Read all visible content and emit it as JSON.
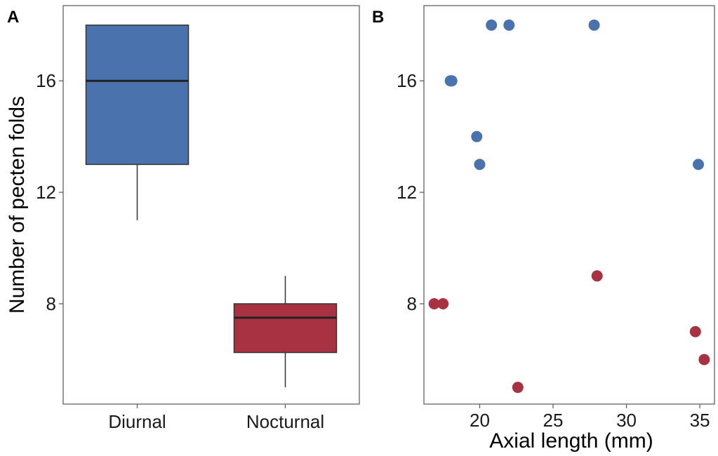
{
  "chart_data": [
    {
      "type": "box",
      "panel_label": "A",
      "ylabel": "Number of pecten folds",
      "xlabel": "",
      "ylim": [
        4.4,
        18.7
      ],
      "yticks": [
        8,
        12,
        16
      ],
      "categories": [
        "Diurnal",
        "Nocturnal"
      ],
      "boxes": [
        {
          "name": "Diurnal",
          "whisker_low": 11,
          "q1": 13,
          "median": 16,
          "q3": 18,
          "whisker_high": 18,
          "color": "#4a72ad"
        },
        {
          "name": "Nocturnal",
          "whisker_low": 5,
          "q1": 6.25,
          "median": 7.5,
          "q3": 8,
          "whisker_high": 9,
          "color": "#a93242"
        }
      ]
    },
    {
      "type": "scatter",
      "panel_label": "B",
      "xlabel": "Axial length (mm)",
      "ylabel": "",
      "xlim": [
        16.2,
        36.0
      ],
      "ylim": [
        4.4,
        18.7
      ],
      "xticks": [
        20,
        25,
        30,
        35
      ],
      "yticks": [
        8,
        12,
        16
      ],
      "series": [
        {
          "color": "#4a72ad",
          "points": [
            [
              20.8,
              18
            ],
            [
              22.0,
              18
            ],
            [
              27.8,
              18
            ],
            [
              18.0,
              16
            ],
            [
              18.1,
              16
            ],
            [
              19.8,
              14
            ],
            [
              20.0,
              13
            ],
            [
              34.9,
              13
            ]
          ]
        },
        {
          "color": "#a93242",
          "points": [
            [
              16.9,
              8
            ],
            [
              17.5,
              8
            ],
            [
              28.0,
              9
            ],
            [
              34.7,
              7
            ],
            [
              35.3,
              6
            ],
            [
              22.6,
              5
            ]
          ]
        }
      ]
    }
  ]
}
